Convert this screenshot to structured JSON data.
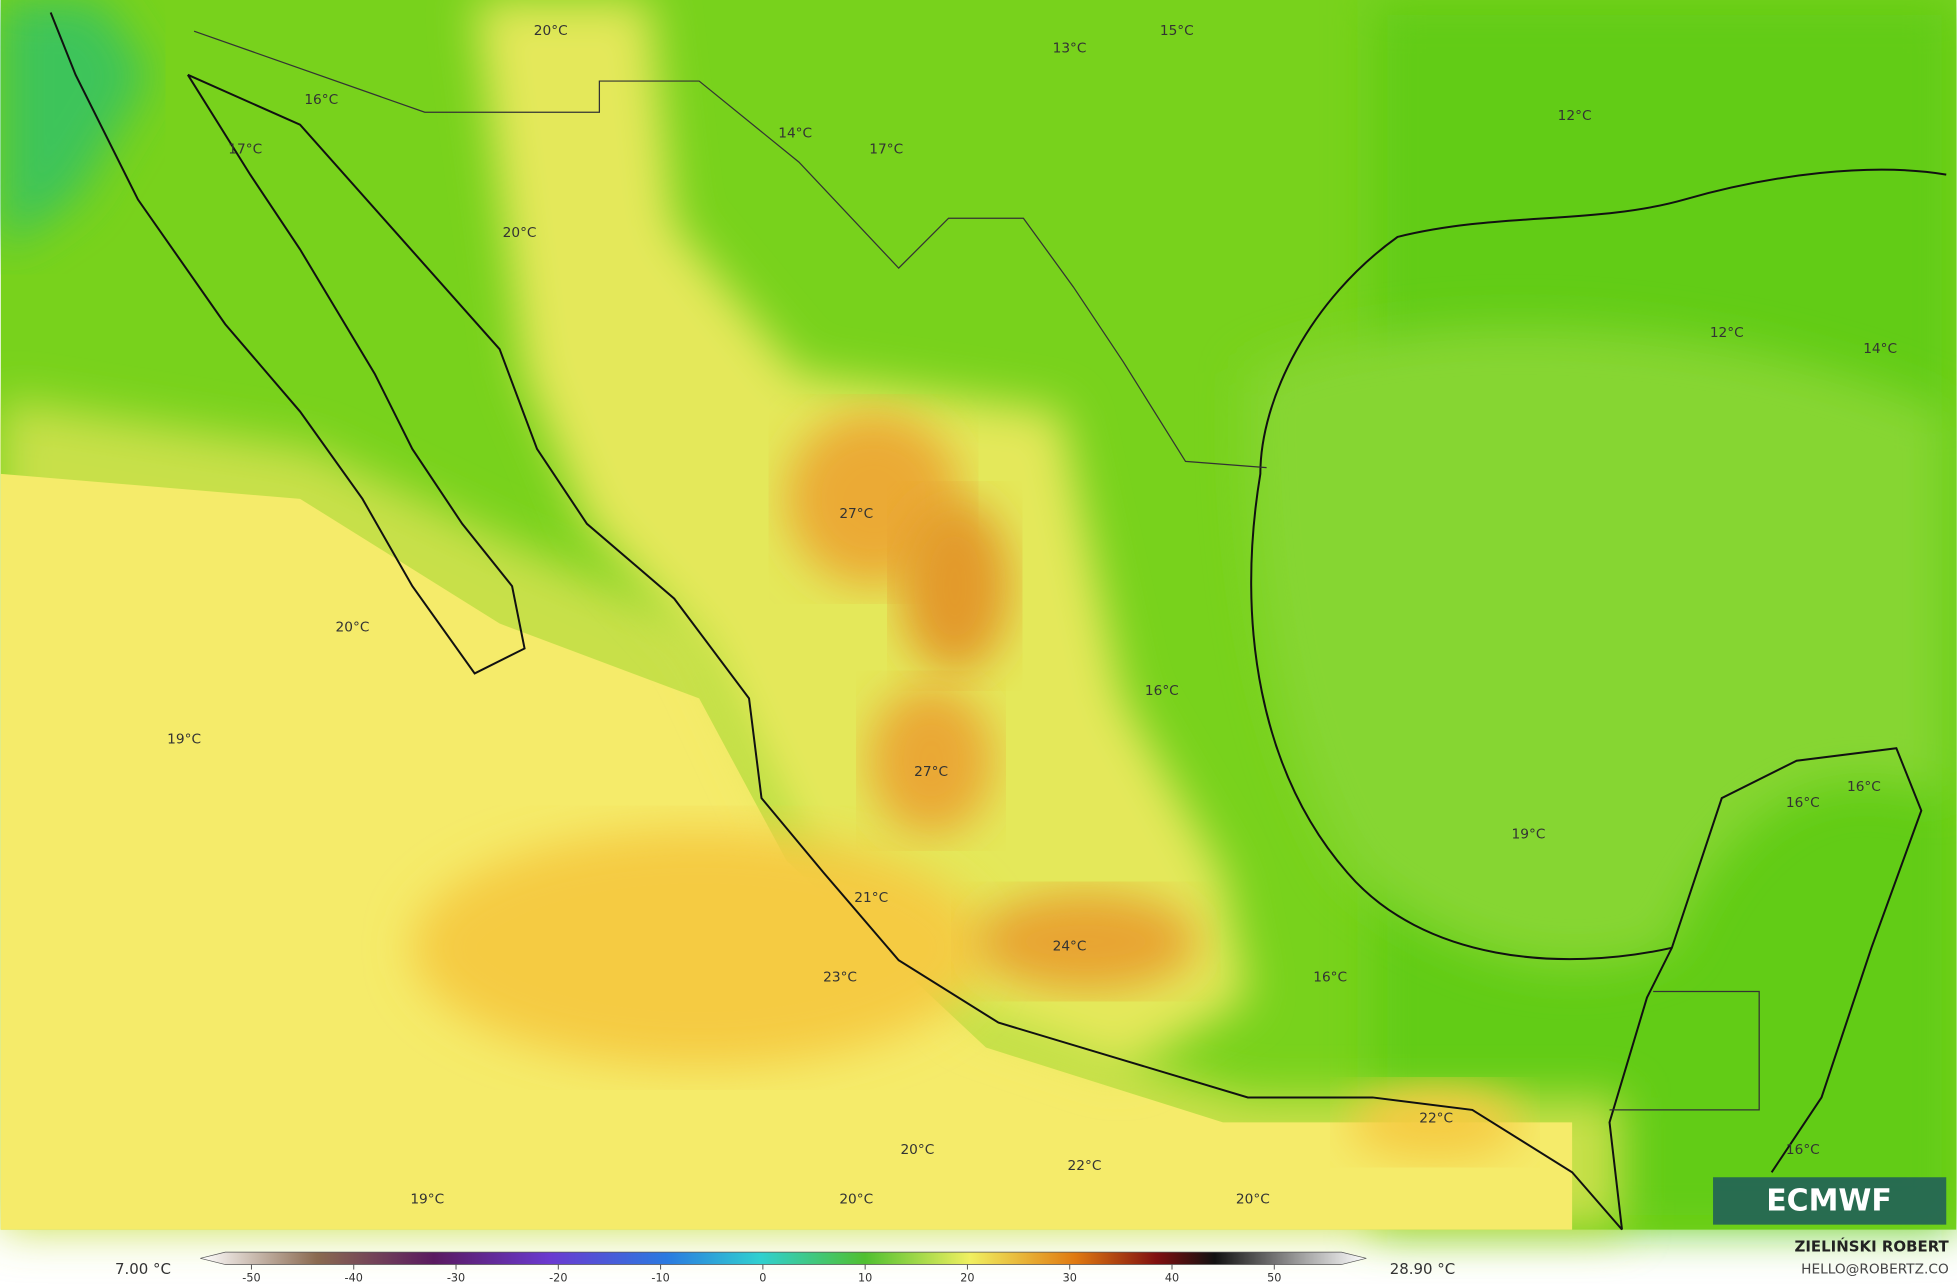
{
  "map": {
    "labels": [
      "20°C",
      "13°C",
      "15°C",
      "16°C",
      "17°C",
      "14°C",
      "17°C",
      "12°C",
      "20°C",
      "12°C",
      "14°C",
      "27°C",
      "20°C",
      "16°C",
      "19°C",
      "27°C",
      "16°C",
      "16°C",
      "19°C",
      "21°C",
      "24°C",
      "23°C",
      "16°C",
      "22°C",
      "20°C",
      "22°C",
      "16°C",
      "19°C",
      "20°C",
      "20°C"
    ]
  },
  "colorbar": {
    "min_label": "7.00 °C",
    "max_label": "28.90 °C",
    "ticks": [
      -50,
      -40,
      -30,
      -20,
      -10,
      0,
      10,
      20,
      30,
      40,
      50
    ],
    "lim": [
      -55,
      59
    ]
  },
  "logo": "ECMWF",
  "credit": {
    "name": "ZIELIŃSKI ROBERT",
    "email": "HELLO@ROBERTZ.CO"
  }
}
